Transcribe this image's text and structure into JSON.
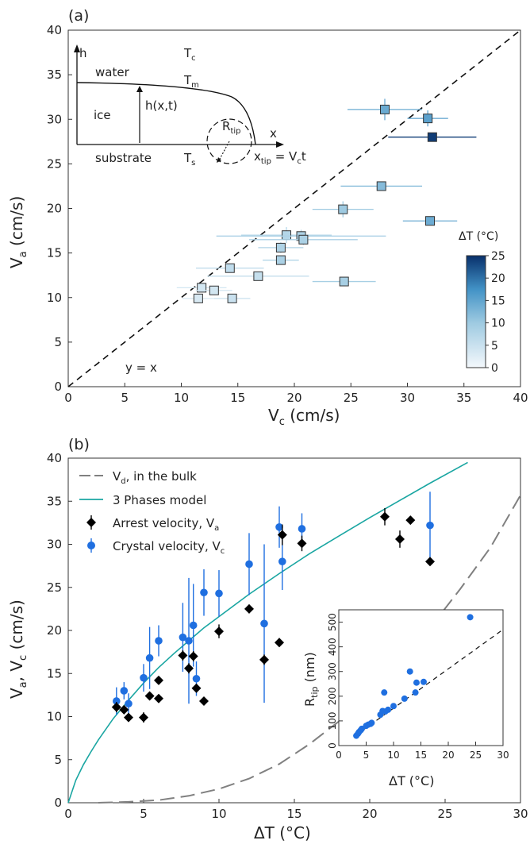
{
  "chart_data": [
    {
      "panel": "(a)",
      "type": "scatter",
      "xlabel": "V",
      "xlabel_sub": "c",
      "xlabel_unit": " (cm/s)",
      "ylabel": "V",
      "ylabel_sub": "a",
      "ylabel_unit": " (cm/s)",
      "xlim": [
        0,
        40
      ],
      "ylim": [
        0,
        40
      ],
      "xticks": [
        0,
        5,
        10,
        15,
        20,
        25,
        30,
        35,
        40
      ],
      "yticks": [
        0,
        5,
        10,
        15,
        20,
        25,
        30,
        35,
        40
      ],
      "diagonal_label": "y = x",
      "colorbar": {
        "label": "ΔT (°C)",
        "min": 0,
        "max": 25,
        "ticks": [
          0,
          5,
          10,
          15,
          20,
          25
        ],
        "low_color": "#f4f8fc",
        "high_color": "#08306b"
      },
      "points": [
        {
          "x": 11.5,
          "y": 9.9,
          "xerr": 1.4,
          "yerr": 0.0,
          "dT": 3.2
        },
        {
          "x": 11.8,
          "y": 11.1,
          "xerr": 2.2,
          "yerr": 0.0,
          "dT": 3.8
        },
        {
          "x": 12.9,
          "y": 10.8,
          "xerr": 1.6,
          "yerr": 0.0,
          "dT": 4.0
        },
        {
          "x": 14.5,
          "y": 9.9,
          "xerr": 1.6,
          "yerr": 0.0,
          "dT": 5.0
        },
        {
          "x": 14.3,
          "y": 13.3,
          "xerr": 3.0,
          "yerr": 0.0,
          "dT": 6.0
        },
        {
          "x": 16.8,
          "y": 12.4,
          "xerr": 4.5,
          "yerr": 0.0,
          "dT": 5.5
        },
        {
          "x": 18.8,
          "y": 14.2,
          "xerr": 1.6,
          "yerr": 0.0,
          "dT": 8.5
        },
        {
          "x": 18.8,
          "y": 15.6,
          "xerr": 2.0,
          "yerr": 0.6,
          "dT": 8.0
        },
        {
          "x": 19.3,
          "y": 17.0,
          "xerr": 4.0,
          "yerr": 0.9,
          "dT": 7.5
        },
        {
          "x": 20.6,
          "y": 16.9,
          "xerr": 7.5,
          "yerr": 0.7,
          "dT": 8.2
        },
        {
          "x": 20.8,
          "y": 16.5,
          "xerr": 4.8,
          "yerr": 0.6,
          "dT": 8.5
        },
        {
          "x": 24.4,
          "y": 11.8,
          "xerr": 2.8,
          "yerr": 0.0,
          "dT": 9.0
        },
        {
          "x": 24.3,
          "y": 19.9,
          "xerr": 2.7,
          "yerr": 0.9,
          "dT": 10.0
        },
        {
          "x": 27.7,
          "y": 22.5,
          "xerr": 3.6,
          "yerr": 0.0,
          "dT": 12.0
        },
        {
          "x": 32.0,
          "y": 18.6,
          "xerr": 2.4,
          "yerr": 0.0,
          "dT": 14.0
        },
        {
          "x": 28.0,
          "y": 31.1,
          "xerr": 3.3,
          "yerr": 1.2,
          "dT": 14.2
        },
        {
          "x": 31.8,
          "y": 30.1,
          "xerr": 1.8,
          "yerr": 0.9,
          "dT": 15.5
        },
        {
          "x": 32.2,
          "y": 28.0,
          "xerr": 3.9,
          "yerr": 0.0,
          "dT": 24.0
        }
      ],
      "inset_schematic": {
        "axis_h": "h",
        "axis_x": "x",
        "water": "water",
        "ice": "ice",
        "substrate": "substrate",
        "Tc": "T",
        "Tc_sub": "c",
        "Tm": "T",
        "Tm_sub": "m",
        "Ts": "T",
        "Ts_sub": "s",
        "height": "h(x,t)",
        "rtip": "R",
        "rtip_sub": "tip",
        "xtip": "x",
        "xtip_sub": "tip",
        "xtip_rhs": " = V",
        "xtip_rhs_sub": "c",
        "xtip_rhs_tail": "t"
      }
    },
    {
      "panel": "(b)",
      "type": "scatter",
      "xlabel": "ΔT (°C)",
      "ylabel": "V",
      "ylabel_sub1": "a",
      "ylabel_mid": ", V",
      "ylabel_sub2": "c",
      "ylabel_unit": " (cm/s)",
      "xlim": [
        0,
        30
      ],
      "ylim": [
        0,
        40
      ],
      "xticks": [
        0,
        5,
        10,
        15,
        20,
        25,
        30
      ],
      "yticks": [
        0,
        5,
        10,
        15,
        20,
        25,
        30,
        35,
        40
      ],
      "legend_position": "top-left",
      "legend": [
        {
          "key": "bulk",
          "label": "V",
          "sub": "d",
          "tail": ", in the bulk"
        },
        {
          "key": "model",
          "label": "3 Phases model"
        },
        {
          "key": "arrest",
          "label": "Arrest velocity, V",
          "sub": "a"
        },
        {
          "key": "crystal",
          "label": "Crystal velocity, V",
          "sub": "c"
        }
      ],
      "colors": {
        "arrest": "#000000",
        "crystal": "#1f6fe0",
        "model": "#1aa6a2",
        "bulk": "#808080"
      },
      "model_curve": {
        "x": [
          0,
          0.5,
          1,
          1.5,
          2,
          3,
          4,
          5,
          6,
          7,
          8,
          9,
          10,
          12,
          14,
          16,
          18,
          20,
          22,
          24,
          26.5
        ],
        "y": [
          0,
          2.6,
          4.4,
          5.9,
          7.3,
          9.8,
          11.9,
          13.9,
          15.7,
          17.3,
          18.8,
          20.3,
          21.6,
          24.2,
          26.6,
          28.9,
          31.0,
          33.1,
          35.1,
          37.1,
          39.5
        ]
      },
      "bulk_curve": {
        "x": [
          2,
          4,
          6,
          8,
          10,
          12,
          14,
          16,
          18,
          20,
          22,
          24,
          26,
          28,
          30
        ],
        "y": [
          0.0,
          0.1,
          0.3,
          0.8,
          1.6,
          2.8,
          4.5,
          6.8,
          9.5,
          12.7,
          16.3,
          20.3,
          24.8,
          29.6,
          35.7
        ]
      },
      "arrest": [
        {
          "x": 3.2,
          "y": 11.1,
          "err": 0.6
        },
        {
          "x": 3.7,
          "y": 10.8,
          "err": 0.5
        },
        {
          "x": 4.0,
          "y": 9.9,
          "err": 0.4
        },
        {
          "x": 5.0,
          "y": 9.9,
          "err": 0.6
        },
        {
          "x": 5.4,
          "y": 12.4,
          "err": 0.4
        },
        {
          "x": 6.0,
          "y": 12.1,
          "err": 0.4
        },
        {
          "x": 6.0,
          "y": 14.2,
          "err": 0.4
        },
        {
          "x": 7.6,
          "y": 17.1,
          "err": 0.6
        },
        {
          "x": 8.0,
          "y": 15.6,
          "err": 0.6
        },
        {
          "x": 8.3,
          "y": 17.0,
          "err": 0.6
        },
        {
          "x": 8.5,
          "y": 13.3,
          "err": 0.5
        },
        {
          "x": 9.0,
          "y": 11.8,
          "err": 0.4
        },
        {
          "x": 10.0,
          "y": 19.9,
          "err": 0.8
        },
        {
          "x": 12.0,
          "y": 22.5,
          "err": 0.5
        },
        {
          "x": 13.0,
          "y": 16.6,
          "err": 0.6
        },
        {
          "x": 14.0,
          "y": 18.6,
          "err": 0.5
        },
        {
          "x": 14.2,
          "y": 31.1,
          "err": 1.2
        },
        {
          "x": 15.5,
          "y": 30.1,
          "err": 0.9
        },
        {
          "x": 21.0,
          "y": 33.2,
          "err": 1.0
        },
        {
          "x": 22.0,
          "y": 30.6,
          "err": 1.0
        },
        {
          "x": 22.7,
          "y": 32.8,
          "err": 0.4
        },
        {
          "x": 24.0,
          "y": 28.0,
          "err": 0.4
        }
      ],
      "crystal": [
        {
          "x": 3.2,
          "y": 11.8,
          "err": 1.6
        },
        {
          "x": 3.7,
          "y": 13.0,
          "err": 1.0
        },
        {
          "x": 4.0,
          "y": 11.5,
          "err": 1.2
        },
        {
          "x": 5.0,
          "y": 14.5,
          "err": 1.6
        },
        {
          "x": 5.4,
          "y": 16.8,
          "err": 3.6
        },
        {
          "x": 6.0,
          "y": 18.8,
          "err": 1.8
        },
        {
          "x": 7.6,
          "y": 19.2,
          "err": 4.0
        },
        {
          "x": 8.0,
          "y": 18.8,
          "err": 7.3
        },
        {
          "x": 8.3,
          "y": 20.6,
          "err": 4.8
        },
        {
          "x": 8.5,
          "y": 14.4,
          "err": 2.0
        },
        {
          "x": 9.0,
          "y": 24.4,
          "err": 2.7
        },
        {
          "x": 10.0,
          "y": 24.3,
          "err": 2.7
        },
        {
          "x": 12.0,
          "y": 27.7,
          "err": 3.6
        },
        {
          "x": 13.0,
          "y": 20.8,
          "err": 9.2
        },
        {
          "x": 14.0,
          "y": 32.0,
          "err": 2.4
        },
        {
          "x": 14.2,
          "y": 28.0,
          "err": 3.3
        },
        {
          "x": 15.5,
          "y": 31.8,
          "err": 1.8
        },
        {
          "x": 24.0,
          "y": 32.2,
          "err": 3.9
        }
      ]
    },
    {
      "panel": "(b) inset",
      "type": "scatter",
      "xlabel": "ΔT (°C)",
      "ylabel": "R",
      "ylabel_sub": "tip",
      "ylabel_unit": " (nm)",
      "xlim": [
        0,
        30
      ],
      "ylim": [
        0,
        550
      ],
      "xticks": [
        0,
        5,
        10,
        15,
        20,
        25,
        30
      ],
      "yticks": [
        0,
        100,
        200,
        300,
        400,
        500
      ],
      "fit_line": {
        "x": [
          3,
          30
        ],
        "y": [
          40,
          470
        ]
      },
      "points": [
        {
          "x": 3.2,
          "y": 40
        },
        {
          "x": 3.5,
          "y": 48
        },
        {
          "x": 3.7,
          "y": 55
        },
        {
          "x": 4.0,
          "y": 62
        },
        {
          "x": 4.2,
          "y": 68
        },
        {
          "x": 5.0,
          "y": 80
        },
        {
          "x": 5.4,
          "y": 85
        },
        {
          "x": 5.8,
          "y": 88
        },
        {
          "x": 6.0,
          "y": 92
        },
        {
          "x": 7.6,
          "y": 125
        },
        {
          "x": 8.0,
          "y": 140
        },
        {
          "x": 8.3,
          "y": 215
        },
        {
          "x": 8.5,
          "y": 138
        },
        {
          "x": 9.0,
          "y": 145
        },
        {
          "x": 10.0,
          "y": 160
        },
        {
          "x": 12.0,
          "y": 190
        },
        {
          "x": 13.0,
          "y": 300
        },
        {
          "x": 14.0,
          "y": 215
        },
        {
          "x": 14.2,
          "y": 255
        },
        {
          "x": 15.5,
          "y": 258
        },
        {
          "x": 24.0,
          "y": 520
        }
      ]
    }
  ]
}
